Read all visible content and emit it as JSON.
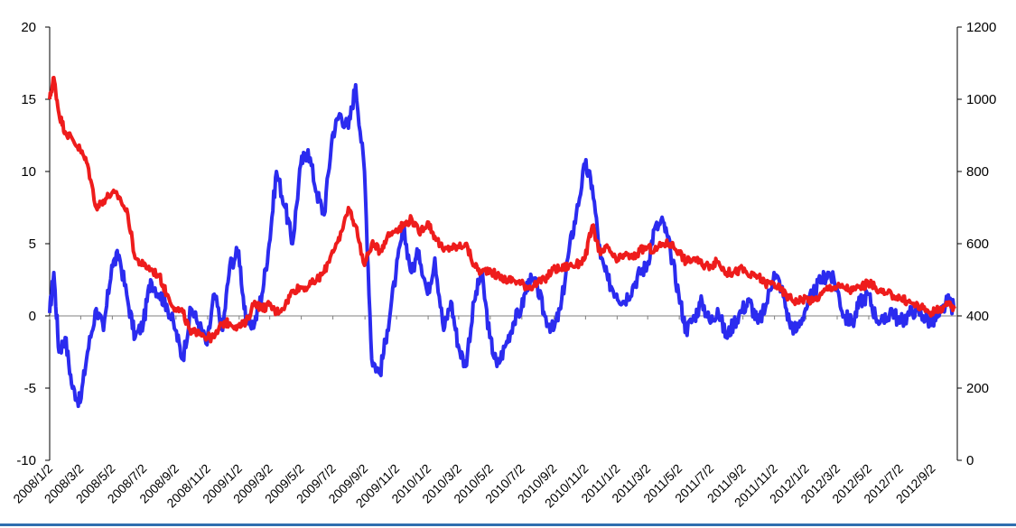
{
  "chart_data": {
    "type": "line",
    "title": "",
    "xlabel": "",
    "ylabel_left": "",
    "ylabel_right": "",
    "y_left_lim": [
      -10,
      20
    ],
    "y_left_ticks": [
      "-10",
      "-5",
      "0",
      "5",
      "10",
      "15",
      "20"
    ],
    "y_right_lim": [
      0,
      1200
    ],
    "y_right_ticks": [
      "0",
      "200",
      "400",
      "600",
      "800",
      "1000",
      "1200"
    ],
    "x_tick_labels": [
      "2008/1/2",
      "2008/3/2",
      "2008/5/2",
      "2008/7/2",
      "2008/9/2",
      "2008/11/2",
      "2009/1/2",
      "2009/3/2",
      "2009/5/2",
      "2009/7/2",
      "2009/9/2",
      "2009/11/2",
      "2010/1/2",
      "2010/3/2",
      "2010/5/2",
      "2010/7/2",
      "2010/9/2",
      "2010/11/2",
      "2011/1/2",
      "2011/3/2",
      "2011/5/2",
      "2011/7/2",
      "2011/9/2",
      "2011/11/2",
      "2012/1/2",
      "2012/3/2",
      "2012/5/2",
      "2012/7/2",
      "2012/9/2"
    ],
    "grid": false,
    "legend": "none",
    "series": [
      {
        "axis": "left",
        "color": "#2b2bef",
        "x": [
          "2008/1/2",
          "2008/1/10",
          "2008/1/20",
          "2008/2/1",
          "2008/2/15",
          "2008/3/1",
          "2008/3/15",
          "2008/4/1",
          "2008/4/15",
          "2008/5/1",
          "2008/5/15",
          "2008/6/1",
          "2008/6/15",
          "2008/7/1",
          "2008/7/15",
          "2008/8/1",
          "2008/8/15",
          "2008/9/1",
          "2008/9/15",
          "2008/10/1",
          "2008/10/15",
          "2008/11/1",
          "2008/11/15",
          "2008/12/1",
          "2008/12/15",
          "2009/1/1",
          "2009/1/15",
          "2009/2/1",
          "2009/2/15",
          "2009/3/1",
          "2009/3/15",
          "2009/4/1",
          "2009/4/15",
          "2009/5/1",
          "2009/5/15",
          "2009/6/1",
          "2009/6/15",
          "2009/7/1",
          "2009/7/15",
          "2009/8/1",
          "2009/8/15",
          "2009/9/1",
          "2009/9/15",
          "2009/10/1",
          "2009/10/15",
          "2009/11/1",
          "2009/11/15",
          "2009/12/1",
          "2009/12/15",
          "2010/1/1",
          "2010/1/15",
          "2010/2/1",
          "2010/2/15",
          "2010/3/1",
          "2010/3/15",
          "2010/4/1",
          "2010/4/15",
          "2010/5/1",
          "2010/5/15",
          "2010/6/1",
          "2010/6/15",
          "2010/7/1",
          "2010/7/15",
          "2010/8/1",
          "2010/8/15",
          "2010/9/1",
          "2010/9/15",
          "2010/10/1",
          "2010/10/15",
          "2010/11/1",
          "2010/11/15",
          "2010/12/1",
          "2010/12/15",
          "2011/1/1",
          "2011/1/15",
          "2011/2/1",
          "2011/2/15",
          "2011/3/1",
          "2011/3/15",
          "2011/4/1",
          "2011/4/15",
          "2011/5/1",
          "2011/5/15",
          "2011/6/1",
          "2011/6/15",
          "2011/7/1",
          "2011/7/15",
          "2011/8/1",
          "2011/8/15",
          "2011/9/1",
          "2011/9/15",
          "2011/10/1",
          "2011/10/15",
          "2011/11/1",
          "2011/11/15",
          "2011/12/1",
          "2011/12/15",
          "2012/1/1",
          "2012/1/15",
          "2012/2/1",
          "2012/2/15",
          "2012/3/1",
          "2012/3/15",
          "2012/4/1",
          "2012/4/15",
          "2012/5/1",
          "2012/5/15",
          "2012/6/1",
          "2012/6/15",
          "2012/7/1",
          "2012/7/15",
          "2012/8/1",
          "2012/8/15",
          "2012/9/1",
          "2012/9/15",
          "2012/10/1",
          "2012/10/15"
        ],
        "values": [
          0.2,
          3.0,
          -2.5,
          -1.5,
          -5.0,
          -6.0,
          -2.5,
          0.5,
          -1.0,
          3.5,
          4.2,
          1.0,
          -1.5,
          -0.5,
          2.5,
          1.5,
          0.8,
          -1.0,
          -3.0,
          0.5,
          -0.5,
          -2.0,
          1.5,
          -1.0,
          3.5,
          4.5,
          -0.5,
          -0.5,
          1.5,
          5.0,
          10.0,
          7.5,
          5.0,
          10.5,
          11.5,
          8.5,
          7.0,
          12.5,
          14.0,
          13.0,
          16.0,
          10.0,
          -3.0,
          -4.0,
          -1.0,
          3.0,
          6.0,
          3.0,
          4.5,
          1.5,
          4.0,
          -1.0,
          1.0,
          -2.0,
          -3.5,
          1.0,
          3.0,
          -1.5,
          -3.5,
          -2.0,
          -0.5,
          0.5,
          2.5,
          2.0,
          0.0,
          -1.0,
          0.5,
          4.5,
          7.0,
          10.5,
          9.0,
          4.0,
          2.5,
          1.5,
          1.0,
          2.0,
          3.0,
          3.5,
          6.0,
          6.5,
          4.5,
          1.5,
          -1.0,
          0.0,
          1.0,
          -0.5,
          0.5,
          -1.5,
          -0.5,
          0.5,
          1.0,
          -0.5,
          0.5,
          3.0,
          2.0,
          -0.5,
          -1.0,
          0.5,
          1.5,
          2.5,
          3.0,
          2.0,
          0.0,
          -0.5,
          1.0,
          1.5,
          0.0,
          -0.5,
          0.5,
          -0.5,
          0.0,
          0.5,
          0.0,
          -0.5,
          0.0,
          1.0,
          0.5
        ]
      },
      {
        "axis": "right",
        "color": "#ee1c1c",
        "x": [
          "2008/1/2",
          "2008/1/10",
          "2008/1/20",
          "2008/2/1",
          "2008/2/15",
          "2008/3/1",
          "2008/3/15",
          "2008/4/1",
          "2008/4/15",
          "2008/5/1",
          "2008/5/15",
          "2008/6/1",
          "2008/6/15",
          "2008/7/1",
          "2008/7/15",
          "2008/8/1",
          "2008/8/15",
          "2008/9/1",
          "2008/9/15",
          "2008/10/1",
          "2008/10/15",
          "2008/11/1",
          "2008/11/15",
          "2008/12/1",
          "2008/12/15",
          "2009/1/1",
          "2009/1/15",
          "2009/2/1",
          "2009/2/15",
          "2009/3/1",
          "2009/3/15",
          "2009/4/1",
          "2009/4/15",
          "2009/5/1",
          "2009/5/15",
          "2009/6/1",
          "2009/6/15",
          "2009/7/1",
          "2009/7/15",
          "2009/8/1",
          "2009/8/15",
          "2009/9/1",
          "2009/9/15",
          "2009/10/1",
          "2009/10/15",
          "2009/11/1",
          "2009/11/15",
          "2009/12/1",
          "2009/12/15",
          "2010/1/1",
          "2010/1/15",
          "2010/2/1",
          "2010/2/15",
          "2010/3/1",
          "2010/3/15",
          "2010/4/1",
          "2010/4/15",
          "2010/5/1",
          "2010/5/15",
          "2010/6/1",
          "2010/6/15",
          "2010/7/1",
          "2010/7/15",
          "2010/8/1",
          "2010/8/15",
          "2010/9/1",
          "2010/9/15",
          "2010/10/1",
          "2010/10/15",
          "2010/11/1",
          "2010/11/15",
          "2010/12/1",
          "2010/12/15",
          "2011/1/1",
          "2011/1/15",
          "2011/2/1",
          "2011/2/15",
          "2011/3/1",
          "2011/3/15",
          "2011/4/1",
          "2011/4/15",
          "2011/5/1",
          "2011/5/15",
          "2011/6/1",
          "2011/6/15",
          "2011/7/1",
          "2011/7/15",
          "2011/8/1",
          "2011/8/15",
          "2011/9/1",
          "2011/9/15",
          "2011/10/1",
          "2011/10/15",
          "2011/11/1",
          "2011/11/15",
          "2011/12/1",
          "2011/12/15",
          "2012/1/1",
          "2012/1/15",
          "2012/2/1",
          "2012/2/15",
          "2012/3/1",
          "2012/3/15",
          "2012/4/1",
          "2012/4/15",
          "2012/5/1",
          "2012/5/15",
          "2012/6/1",
          "2012/6/15",
          "2012/7/1",
          "2012/7/15",
          "2012/8/1",
          "2012/8/15",
          "2012/9/1",
          "2012/9/15",
          "2012/10/1",
          "2012/10/15"
        ],
        "values": [
          1000,
          1060,
          960,
          910,
          890,
          860,
          820,
          700,
          720,
          740,
          730,
          680,
          560,
          540,
          530,
          510,
          460,
          420,
          410,
          350,
          360,
          340,
          340,
          380,
          380,
          370,
          380,
          440,
          420,
          430,
          410,
          430,
          470,
          480,
          480,
          500,
          520,
          580,
          610,
          700,
          650,
          540,
          600,
          580,
          620,
          640,
          650,
          670,
          630,
          660,
          620,
          580,
          590,
          590,
          600,
          540,
          520,
          530,
          510,
          500,
          500,
          490,
          480,
          490,
          500,
          530,
          530,
          540,
          540,
          560,
          650,
          570,
          590,
          550,
          570,
          560,
          580,
          590,
          580,
          600,
          600,
          580,
          550,
          560,
          540,
          540,
          550,
          520,
          520,
          530,
          510,
          510,
          490,
          490,
          470,
          450,
          440,
          450,
          440,
          460,
          480,
          480,
          480,
          470,
          480,
          490,
          480,
          460,
          460,
          450,
          440,
          430,
          420,
          410,
          420,
          430,
          420
        ]
      }
    ]
  }
}
